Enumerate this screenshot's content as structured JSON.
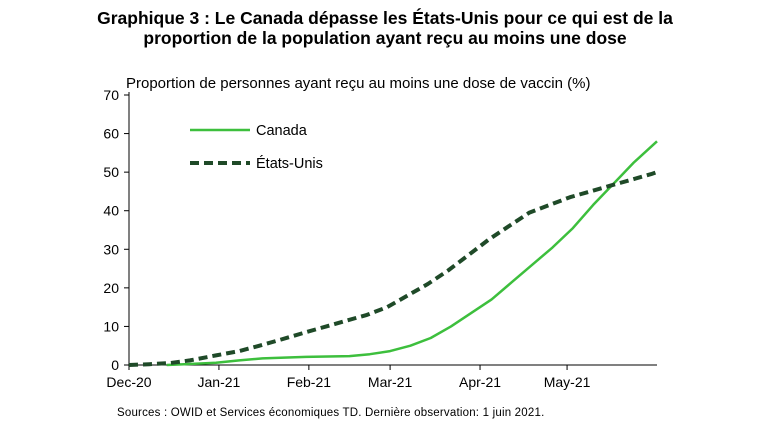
{
  "chart_data": {
    "type": "line",
    "title": "Graphique 3 : Le Canada dépasse les États-Unis pour ce qui est de la proportion de la population ayant reçu au moins une dose",
    "ylabel": "Proportion de personnes ayant reçu au moins une dose de vaccin (%)",
    "xlabel": "",
    "ylim": [
      0,
      70
    ],
    "yticks": [
      0,
      10,
      20,
      30,
      40,
      50,
      60,
      70
    ],
    "xlim": [
      "2020-12-01",
      "2021-06-01"
    ],
    "xticks": [
      {
        "date": "2020-12-01",
        "label": "Dec-20"
      },
      {
        "date": "2021-01-01",
        "label": "Jan-21"
      },
      {
        "date": "2021-02-01",
        "label": "Feb-21"
      },
      {
        "date": "2021-03-01",
        "label": "Mar-21"
      },
      {
        "date": "2021-04-01",
        "label": "Apr-21"
      },
      {
        "date": "2021-05-01",
        "label": "May-21"
      }
    ],
    "grid": false,
    "legend_position": "top-left",
    "series": [
      {
        "name": "Canada",
        "color": "#3dbf3d",
        "style": "solid",
        "points": [
          [
            "2020-12-14",
            0
          ],
          [
            "2020-12-20",
            0.2
          ],
          [
            "2020-12-31",
            0.6
          ],
          [
            "2021-01-08",
            1.2
          ],
          [
            "2021-01-16",
            1.7
          ],
          [
            "2021-01-31",
            2.1
          ],
          [
            "2021-02-15",
            2.3
          ],
          [
            "2021-02-22",
            2.8
          ],
          [
            "2021-03-01",
            3.6
          ],
          [
            "2021-03-08",
            5.0
          ],
          [
            "2021-03-15",
            7.0
          ],
          [
            "2021-03-22",
            10.0
          ],
          [
            "2021-03-29",
            13.5
          ],
          [
            "2021-04-05",
            17.0
          ],
          [
            "2021-04-12",
            21.5
          ],
          [
            "2021-04-19",
            26.0
          ],
          [
            "2021-04-26",
            30.5
          ],
          [
            "2021-05-03",
            35.5
          ],
          [
            "2021-05-10",
            41.5
          ],
          [
            "2021-05-17",
            47.0
          ],
          [
            "2021-05-24",
            52.5
          ],
          [
            "2021-06-01",
            58.0
          ]
        ]
      },
      {
        "name": "États-Unis",
        "color": "#1f4a28",
        "style": "dashed",
        "points": [
          [
            "2020-12-01",
            0
          ],
          [
            "2020-12-08",
            0.2
          ],
          [
            "2020-12-15",
            0.5
          ],
          [
            "2020-12-22",
            1.2
          ],
          [
            "2020-12-31",
            2.5
          ],
          [
            "2021-01-08",
            3.6
          ],
          [
            "2021-01-15",
            5.0
          ],
          [
            "2021-01-22",
            6.5
          ],
          [
            "2021-01-31",
            8.5
          ],
          [
            "2021-02-07",
            10.0
          ],
          [
            "2021-02-14",
            11.5
          ],
          [
            "2021-02-21",
            13.0
          ],
          [
            "2021-02-28",
            15.0
          ],
          [
            "2021-03-07",
            18.0
          ],
          [
            "2021-03-14",
            21.0
          ],
          [
            "2021-03-21",
            24.5
          ],
          [
            "2021-03-28",
            28.5
          ],
          [
            "2021-04-04",
            32.5
          ],
          [
            "2021-04-11",
            36.0
          ],
          [
            "2021-04-18",
            39.5
          ],
          [
            "2021-04-25",
            41.5
          ],
          [
            "2021-05-02",
            43.5
          ],
          [
            "2021-05-09",
            45.0
          ],
          [
            "2021-05-16",
            46.5
          ],
          [
            "2021-05-23",
            48.0
          ],
          [
            "2021-05-30",
            49.5
          ],
          [
            "2021-06-01",
            50.0
          ]
        ]
      }
    ]
  },
  "source_note": "Sources : OWID  et Services économiques  TD.  Dernière  observation:  1 juin 2021."
}
